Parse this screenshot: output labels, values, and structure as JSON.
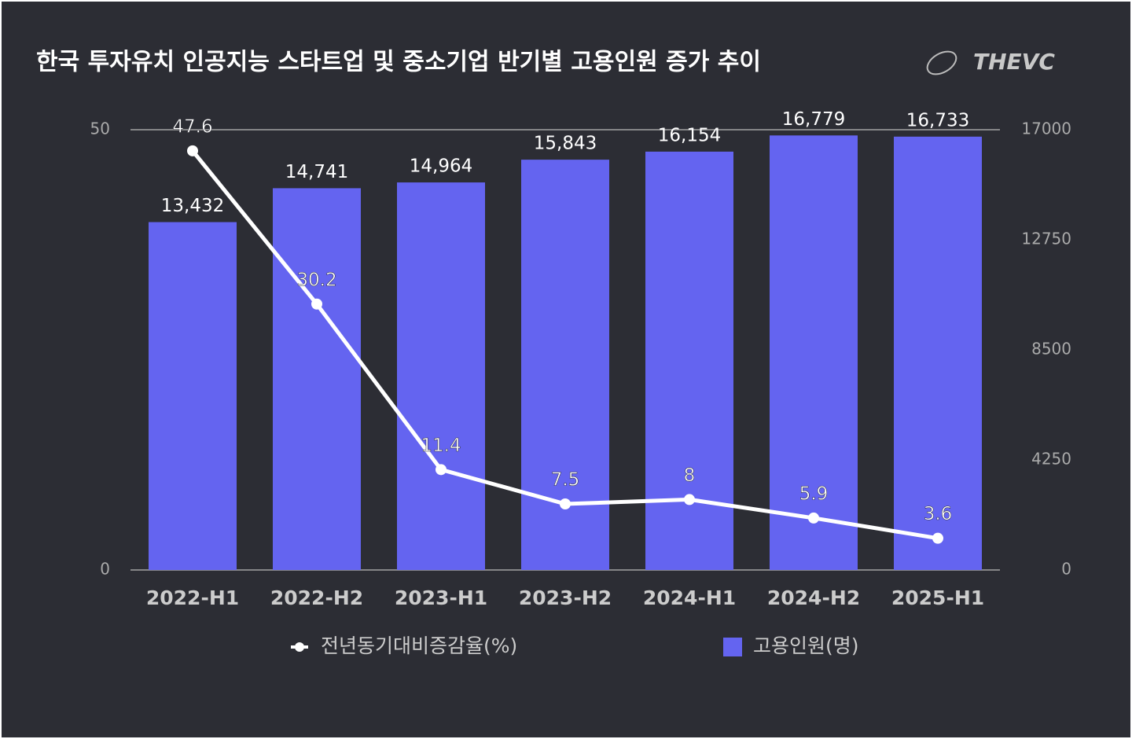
{
  "chart_data": {
    "type": "bar",
    "title": "한국 투자유치 인공지능 스타트업 및 중소기업 반기별 고용인원 증가 추이",
    "brand": "THEVC",
    "categories": [
      "2022-H1",
      "2022-H2",
      "2023-H1",
      "2023-H2",
      "2024-H1",
      "2024-H2",
      "2025-H1"
    ],
    "series": [
      {
        "name": "전년동기대비증감율(%)",
        "type": "line",
        "color": "#ffffff",
        "values": [
          47.6,
          30.2,
          11.4,
          7.5,
          8,
          5.9,
          3.6
        ]
      },
      {
        "name": "고용인원(명)",
        "type": "bar",
        "axis": "y2",
        "color": "#6464f0",
        "values": [
          13432,
          14741,
          14964,
          15843,
          16154,
          16779,
          16733
        ],
        "value_labels": [
          "13,432",
          "14,741",
          "14,964",
          "15,843",
          "16,154",
          "16,779",
          "16,733"
        ]
      }
    ],
    "ylim": [
      0,
      50
    ],
    "yticks": [
      0,
      50
    ],
    "y2lim": [
      0,
      17000
    ],
    "y2ticks": [
      0,
      4250,
      8500,
      12750,
      17000
    ],
    "grid": true,
    "legend": "bottom"
  }
}
